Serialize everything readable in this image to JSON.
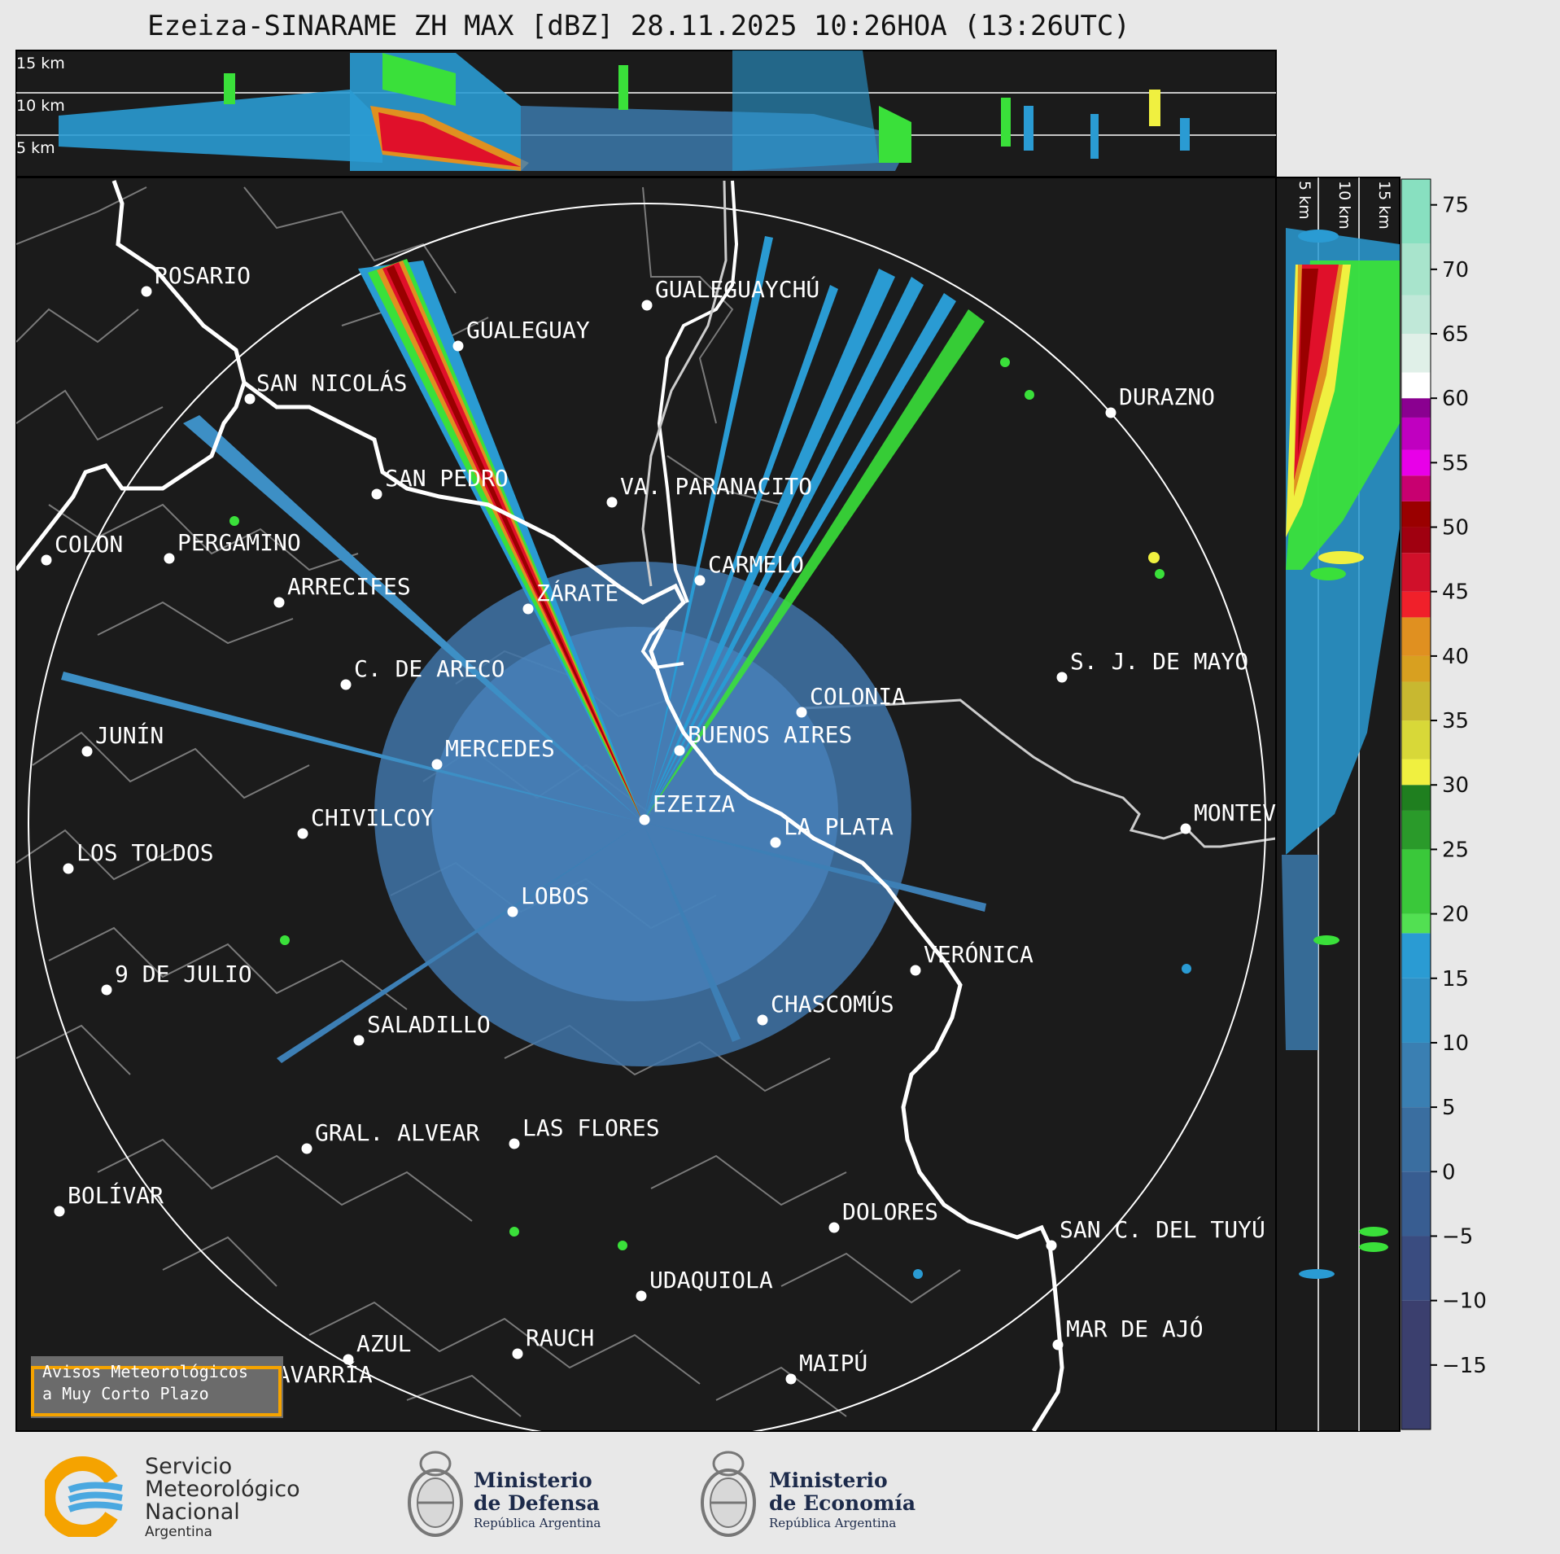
{
  "title": "Ezeiza-SINARAME ZH MAX [dBZ] 28.11.2025 10:26HOA (13:26UTC)",
  "top_section": {
    "height_labels": [
      "15 km",
      "10 km",
      "5 km"
    ]
  },
  "side_section": {
    "height_labels": [
      "5 km",
      "10 km",
      "15 km"
    ]
  },
  "colorbar": {
    "unit": "dBZ",
    "ticks": [
      "75",
      "70",
      "65",
      "60",
      "55",
      "50",
      "45",
      "40",
      "35",
      "30",
      "25",
      "20",
      "15",
      "10",
      "5",
      "0",
      "−5",
      "−10",
      "−15"
    ],
    "range": [
      -20,
      77
    ],
    "colors": {
      "bottom": "#3b3f6e",
      "blue_low": "#3d6fa0",
      "blue": "#2a9bd3",
      "green": "#3ae03a",
      "dark_green": "#1f7f1f",
      "yellow": "#f0f040",
      "orange": "#e09020",
      "red": "#e0102a",
      "dark_red": "#9a0000",
      "magenta": "#e800e8",
      "purple": "#8a0090",
      "white": "#ffffff",
      "mint": "#88e0c0"
    }
  },
  "map": {
    "background": "#1b1b1b",
    "radar_site": "EZEIZA",
    "cities": [
      {
        "name": "ROSARIO"
      },
      {
        "name": "GUALEGUAYCHÚ"
      },
      {
        "name": "GUALEGUAY"
      },
      {
        "name": "SAN NICOLÁS"
      },
      {
        "name": "DURAZNO"
      },
      {
        "name": "SAN PEDRO"
      },
      {
        "name": "VA. PARANACITO"
      },
      {
        "name": "COLON"
      },
      {
        "name": "PERGAMINO"
      },
      {
        "name": "CARMELO"
      },
      {
        "name": "ARRECIFES"
      },
      {
        "name": "ZÁRATE"
      },
      {
        "name": "S. J. DE MAYO"
      },
      {
        "name": "C. DE ARECO"
      },
      {
        "name": "COLONIA"
      },
      {
        "name": "JUNÍN"
      },
      {
        "name": "BUENOS AIRES"
      },
      {
        "name": "MERCEDES"
      },
      {
        "name": "EZEIZA"
      },
      {
        "name": "MONTEVIDEO"
      },
      {
        "name": "CHIVILCOY"
      },
      {
        "name": "LA PLATA"
      },
      {
        "name": "LOS TOLDOS"
      },
      {
        "name": "LOBOS"
      },
      {
        "name": "VERÓNICA"
      },
      {
        "name": "9 DE JULIO"
      },
      {
        "name": "CHASCOMÚS"
      },
      {
        "name": "SALADILLO"
      },
      {
        "name": "GRAL. ALVEAR"
      },
      {
        "name": "LAS FLORES"
      },
      {
        "name": "BOLÍVAR"
      },
      {
        "name": "DOLORES"
      },
      {
        "name": "SAN C. DEL TUYÚ"
      },
      {
        "name": "UDAQUIOLA"
      },
      {
        "name": "AZUL"
      },
      {
        "name": "RAUCH"
      },
      {
        "name": "MAR DE AJÓ"
      },
      {
        "name": "OLAVARRÍA"
      },
      {
        "name": "MAIPÚ"
      }
    ]
  },
  "aviso": {
    "line1": "Avisos Meteorológicos",
    "line2": "a Muy Corto Plazo"
  },
  "logos": {
    "smn": {
      "line1": "Servicio",
      "line2": "Meteorológico",
      "line3": "Nacional",
      "line4": "Argentina"
    },
    "defensa": {
      "line1": "Ministerio",
      "line2": "de Defensa",
      "line3": "República Argentina"
    },
    "economia": {
      "line1": "Ministerio",
      "line2": "de Economía",
      "line3": "República Argentina"
    }
  }
}
